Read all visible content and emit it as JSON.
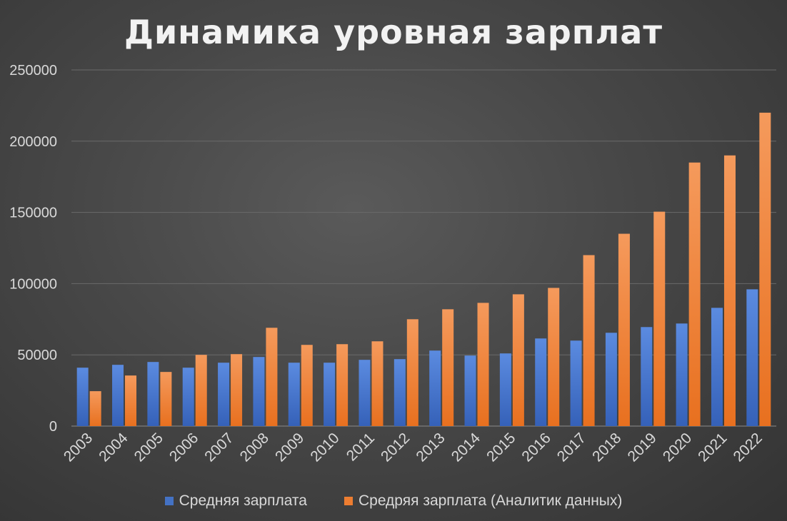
{
  "chart_data": {
    "type": "bar",
    "title": "Динамика уровная зарплат",
    "xlabel": "",
    "ylabel": "",
    "ylim": [
      0,
      250000
    ],
    "yticks": [
      0,
      50000,
      100000,
      150000,
      200000,
      250000
    ],
    "grid": true,
    "legend_position": "bottom",
    "categories": [
      "2003",
      "2004",
      "2005",
      "2006",
      "2007",
      "2008",
      "2009",
      "2010",
      "2011",
      "2012",
      "2013",
      "2014",
      "2015",
      "2016",
      "2017",
      "2018",
      "2019",
      "2020",
      "2021",
      "2022"
    ],
    "series": [
      {
        "name": "Средняя зарплата",
        "color": "#4472c4",
        "values": [
          41000,
          43000,
          45000,
          41000,
          44500,
          48500,
          44500,
          44500,
          46500,
          47000,
          53000,
          49500,
          51000,
          61500,
          60000,
          65500,
          69500,
          72000,
          83000,
          96000
        ]
      },
      {
        "name": "Средряя зарплата (Аналитик данных)",
        "color": "#ed7d31",
        "values": [
          24500,
          35500,
          38000,
          50000,
          50500,
          69000,
          57000,
          57500,
          59500,
          75000,
          82000,
          86500,
          92500,
          97000,
          120000,
          135000,
          150500,
          185000,
          190000,
          220000
        ]
      }
    ]
  }
}
